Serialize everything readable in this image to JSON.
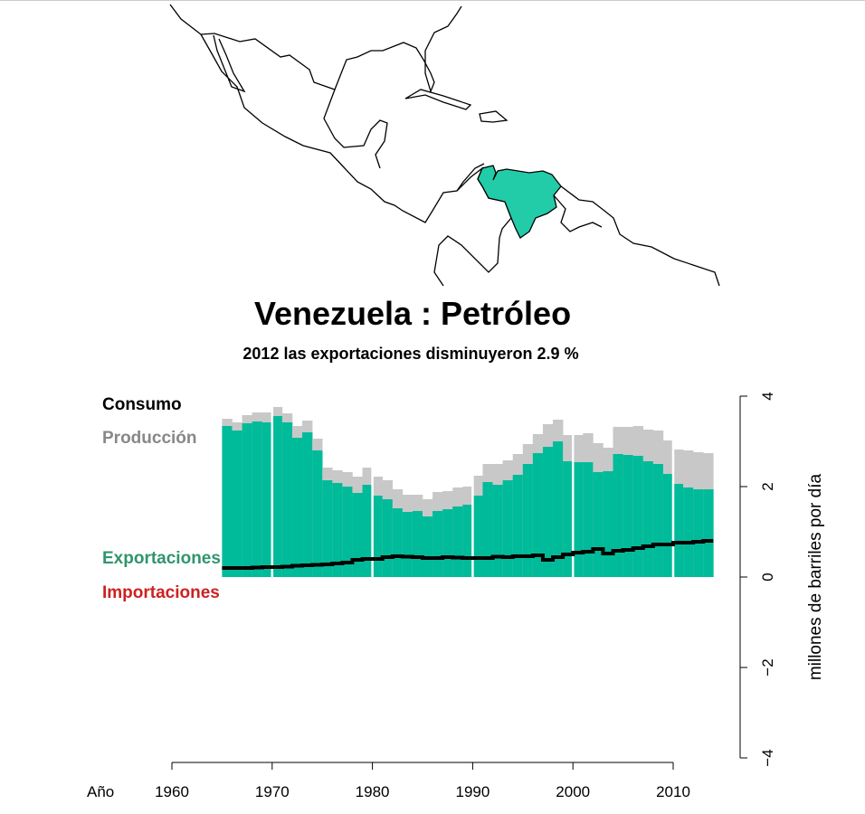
{
  "colors": {
    "production": "#c8c8c8",
    "exports": "#00bb99",
    "consumption": "#000000",
    "country": "#22cca8",
    "exports_label": "#1a8a5e",
    "imports_label": "#cc2222",
    "production_label": "#888888"
  },
  "map": {
    "highlighted_country": "Venezuela"
  },
  "chart_data": {
    "type": "bar",
    "title": "Venezuela :  Petróleo",
    "subtitle": "2012 las exportaciones disminuyeron 2.9 %",
    "xlabel": "Año",
    "ylabel": "millones de barriles por día",
    "xlim": [
      1960,
      2013
    ],
    "ylim": [
      -4,
      4
    ],
    "xticks": [
      "1960",
      "1970",
      "1980",
      "1990",
      "2000",
      "2010"
    ],
    "yticks": [
      "−4",
      "−2",
      "0",
      "2",
      "4"
    ],
    "legend": [
      "Consumo",
      "Producción",
      "Exportaciones",
      "Importaciones"
    ],
    "years": [
      1965,
      1966,
      1967,
      1968,
      1969,
      1970,
      1971,
      1972,
      1973,
      1974,
      1975,
      1976,
      1977,
      1978,
      1979,
      1980,
      1981,
      1982,
      1983,
      1984,
      1985,
      1986,
      1987,
      1988,
      1989,
      1990,
      1991,
      1992,
      1993,
      1994,
      1995,
      1996,
      1997,
      1998,
      1999,
      2000,
      2001,
      2002,
      2003,
      2004,
      2005,
      2006,
      2007,
      2008,
      2009,
      2010,
      2011,
      2012,
      2013
    ],
    "series": [
      {
        "name": "Producción",
        "values": [
          3.5,
          3.42,
          3.58,
          3.64,
          3.64,
          3.76,
          3.62,
          3.34,
          3.46,
          3.06,
          2.42,
          2.36,
          2.32,
          2.22,
          2.42,
          2.22,
          2.14,
          1.94,
          1.82,
          1.82,
          1.72,
          1.88,
          1.9,
          1.98,
          2.0,
          2.24,
          2.5,
          2.5,
          2.58,
          2.72,
          2.94,
          3.16,
          3.38,
          3.48,
          3.14,
          3.14,
          3.18,
          2.96,
          2.86,
          3.32,
          3.32,
          3.34,
          3.26,
          3.24,
          3.02,
          2.82,
          2.8,
          2.76,
          2.74
        ]
      },
      {
        "name": "Exportaciones",
        "values": [
          3.34,
          3.24,
          3.4,
          3.44,
          3.42,
          3.56,
          3.42,
          3.08,
          3.2,
          2.8,
          2.14,
          2.08,
          2.0,
          1.86,
          2.04,
          1.8,
          1.72,
          1.52,
          1.44,
          1.46,
          1.34,
          1.46,
          1.5,
          1.56,
          1.6,
          1.8,
          2.1,
          2.04,
          2.14,
          2.26,
          2.5,
          2.74,
          2.88,
          3.0,
          2.56,
          2.54,
          2.54,
          2.32,
          2.34,
          2.72,
          2.7,
          2.68,
          2.56,
          2.5,
          2.28,
          2.06,
          1.98,
          1.94,
          1.94
        ]
      },
      {
        "name": "Consumo",
        "values": [
          0.2,
          0.2,
          0.2,
          0.21,
          0.22,
          0.22,
          0.23,
          0.25,
          0.26,
          0.27,
          0.28,
          0.3,
          0.32,
          0.38,
          0.4,
          0.4,
          0.44,
          0.46,
          0.45,
          0.44,
          0.42,
          0.42,
          0.44,
          0.43,
          0.42,
          0.42,
          0.42,
          0.45,
          0.44,
          0.46,
          0.46,
          0.48,
          0.38,
          0.44,
          0.5,
          0.54,
          0.56,
          0.62,
          0.52,
          0.58,
          0.6,
          0.64,
          0.68,
          0.72,
          0.72,
          0.76,
          0.76,
          0.78,
          0.8
        ]
      }
    ]
  }
}
